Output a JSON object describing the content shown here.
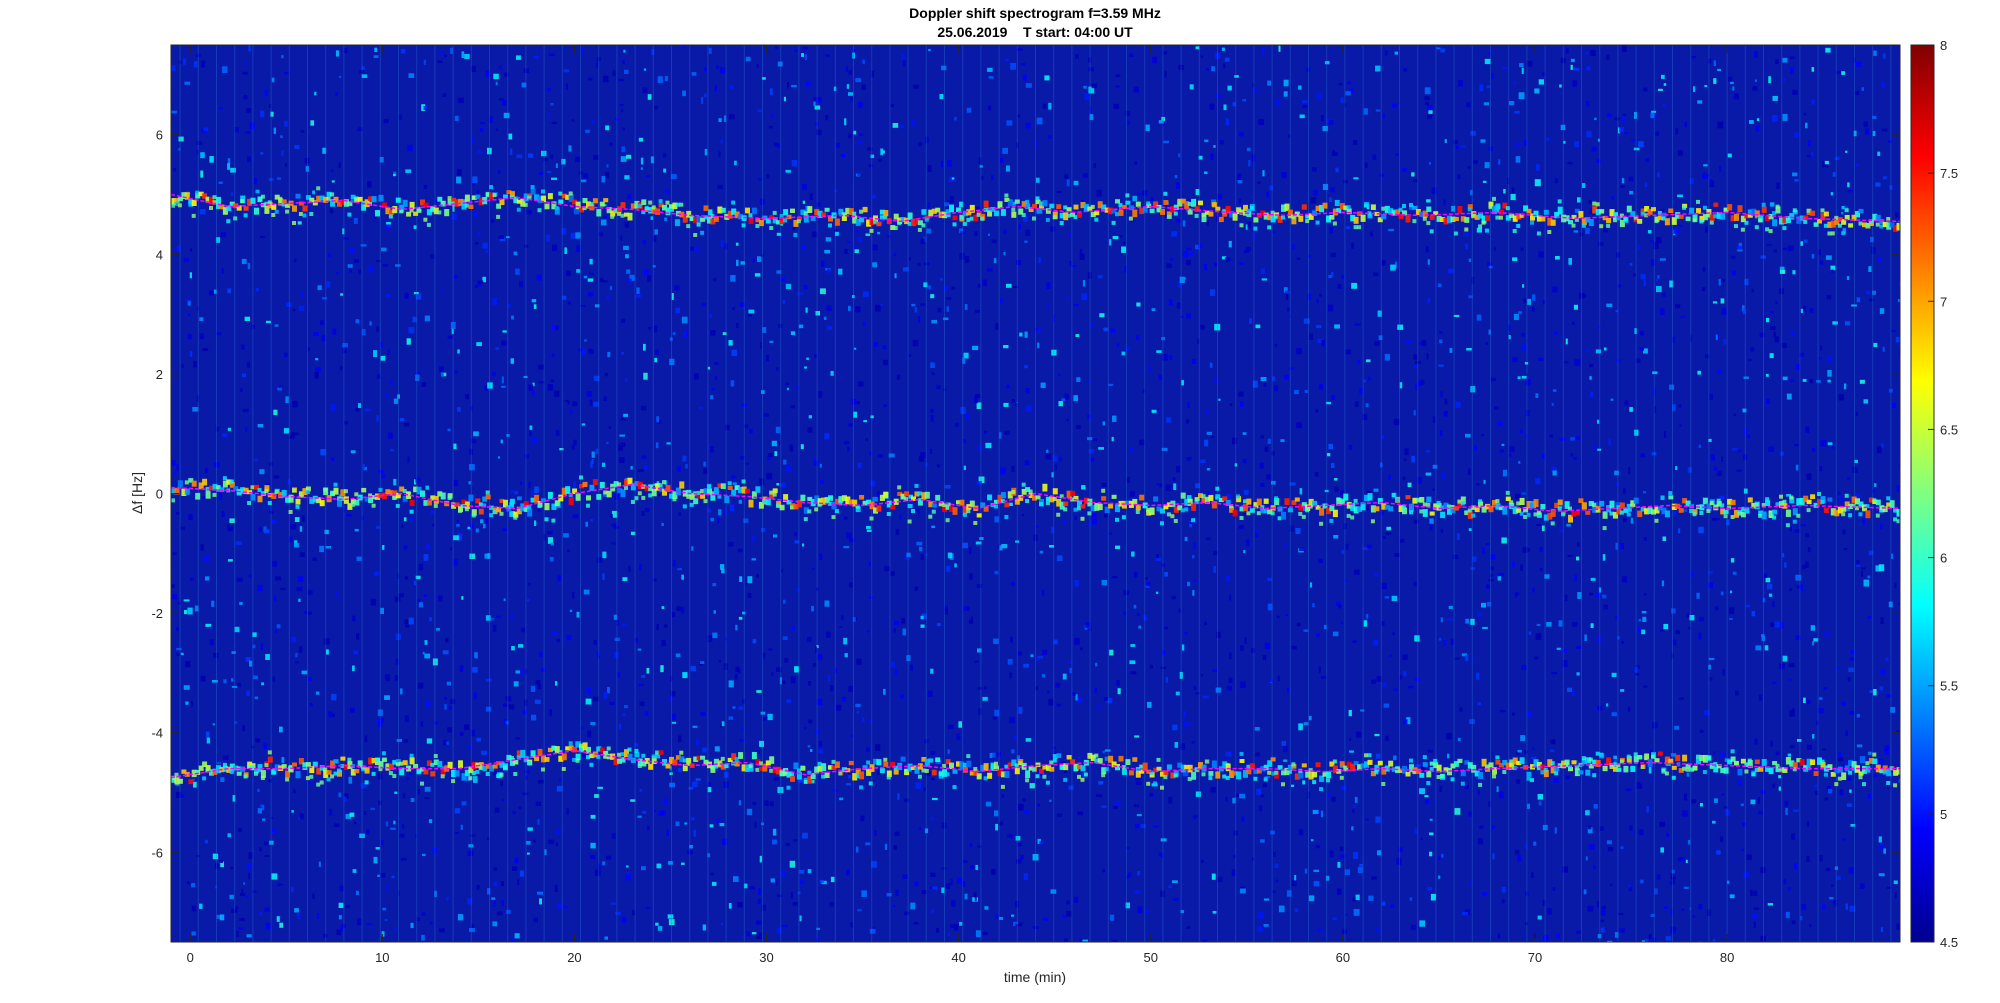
{
  "chart_data": {
    "type": "heatmap",
    "title": "Doppler shift spectrogram f=3.59 MHz",
    "subtitle": "25.06.2019    T start: 04:00 UT",
    "xlabel": "time (min)",
    "ylabel": "Δf [Hz]",
    "xlim": [
      -1,
      89
    ],
    "ylim": [
      -7.5,
      7.5
    ],
    "x_ticks": [
      0,
      10,
      20,
      30,
      40,
      50,
      60,
      70,
      80
    ],
    "y_ticks": [
      -6,
      -4,
      -2,
      0,
      2,
      4,
      6
    ],
    "colorbar": {
      "range": [
        4.5,
        8
      ],
      "ticks": [
        4.5,
        5,
        5.5,
        6,
        6.5,
        7,
        7.5,
        8
      ],
      "colormap": "jet",
      "placement": "right"
    },
    "background_level": 5.0,
    "traces": [
      {
        "name": "",
        "color": "#ff00ff",
        "points": [
          [
            -1,
            5.0
          ],
          [
            2,
            4.8
          ],
          [
            5,
            4.85
          ],
          [
            8,
            4.9
          ],
          [
            11,
            4.75
          ],
          [
            14,
            4.85
          ],
          [
            17,
            4.95
          ],
          [
            20,
            4.8
          ],
          [
            23,
            4.75
          ],
          [
            26,
            4.65
          ],
          [
            30,
            4.6
          ],
          [
            34,
            4.65
          ],
          [
            37,
            4.55
          ],
          [
            40,
            4.7
          ],
          [
            43,
            4.8
          ],
          [
            46,
            4.7
          ],
          [
            50,
            4.8
          ],
          [
            54,
            4.7
          ],
          [
            57,
            4.65
          ],
          [
            60,
            4.7
          ],
          [
            64,
            4.65
          ],
          [
            68,
            4.7
          ],
          [
            72,
            4.6
          ],
          [
            76,
            4.65
          ],
          [
            80,
            4.7
          ],
          [
            84,
            4.6
          ],
          [
            89,
            4.55
          ]
        ]
      },
      {
        "name": "",
        "color": "#ff00ff",
        "points": [
          [
            -1,
            0.1
          ],
          [
            2,
            0.05
          ],
          [
            5,
            -0.05
          ],
          [
            8,
            -0.1
          ],
          [
            11,
            0.0
          ],
          [
            14,
            -0.2
          ],
          [
            17,
            -0.25
          ],
          [
            20,
            0.0
          ],
          [
            23,
            0.15
          ],
          [
            26,
            0.0
          ],
          [
            29,
            -0.05
          ],
          [
            32,
            -0.15
          ],
          [
            35,
            -0.2
          ],
          [
            38,
            -0.1
          ],
          [
            41,
            -0.25
          ],
          [
            44,
            0.0
          ],
          [
            47,
            -0.15
          ],
          [
            50,
            -0.2
          ],
          [
            53,
            -0.15
          ],
          [
            56,
            -0.25
          ],
          [
            59,
            -0.2
          ],
          [
            62,
            -0.15
          ],
          [
            65,
            -0.25
          ],
          [
            68,
            -0.2
          ],
          [
            71,
            -0.3
          ],
          [
            74,
            -0.25
          ],
          [
            77,
            -0.2
          ],
          [
            80,
            -0.25
          ],
          [
            84,
            -0.2
          ],
          [
            89,
            -0.25
          ]
        ]
      },
      {
        "name": "",
        "color": "#ff00ff",
        "points": [
          [
            -1,
            -4.75
          ],
          [
            2,
            -4.6
          ],
          [
            5,
            -4.6
          ],
          [
            8,
            -4.55
          ],
          [
            11,
            -4.6
          ],
          [
            14,
            -4.6
          ],
          [
            17,
            -4.45
          ],
          [
            20,
            -4.3
          ],
          [
            23,
            -4.45
          ],
          [
            26,
            -4.55
          ],
          [
            29,
            -4.5
          ],
          [
            32,
            -4.7
          ],
          [
            35,
            -4.6
          ],
          [
            38,
            -4.55
          ],
          [
            41,
            -4.65
          ],
          [
            44,
            -4.55
          ],
          [
            47,
            -4.5
          ],
          [
            50,
            -4.65
          ],
          [
            53,
            -4.6
          ],
          [
            56,
            -4.6
          ],
          [
            59,
            -4.65
          ],
          [
            62,
            -4.6
          ],
          [
            65,
            -4.65
          ],
          [
            68,
            -4.6
          ],
          [
            72,
            -4.55
          ],
          [
            76,
            -4.5
          ],
          [
            80,
            -4.55
          ],
          [
            84,
            -4.6
          ],
          [
            89,
            -4.6
          ]
        ]
      }
    ]
  }
}
